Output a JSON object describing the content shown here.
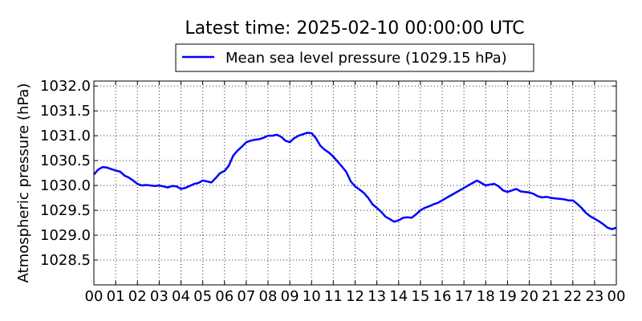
{
  "chart_data": {
    "type": "line",
    "title": "Latest time: 2025-02-10 00:00:00 UTC",
    "xlabel": "",
    "ylabel": "Atmospheric pressure (hPa)",
    "xlim": [
      0,
      24
    ],
    "ylim": [
      1028.0,
      1032.1
    ],
    "grid": true,
    "legend_position": "top-center",
    "x_tick_labels": [
      "00",
      "01",
      "02",
      "03",
      "04",
      "05",
      "06",
      "07",
      "08",
      "09",
      "10",
      "11",
      "12",
      "13",
      "14",
      "15",
      "16",
      "17",
      "18",
      "19",
      "20",
      "21",
      "22",
      "23",
      "00"
    ],
    "y_ticks": [
      1028.5,
      1029.0,
      1029.5,
      1030.0,
      1030.5,
      1031.0,
      1031.5,
      1032.0
    ],
    "y_tick_labels": [
      "1028.5",
      "1029.0",
      "1029.5",
      "1030.0",
      "1030.5",
      "1031.0",
      "1031.5",
      "1032.0"
    ],
    "series": [
      {
        "name": "Mean sea level pressure (1029.15 hPa)",
        "color": "#0000ff",
        "x": [
          0.0,
          0.2,
          0.4,
          0.6,
          0.8,
          1.0,
          1.2,
          1.4,
          1.6,
          1.8,
          2.0,
          2.2,
          2.4,
          2.6,
          2.8,
          3.0,
          3.2,
          3.4,
          3.6,
          3.8,
          4.0,
          4.2,
          4.4,
          4.6,
          4.8,
          5.0,
          5.2,
          5.4,
          5.6,
          5.8,
          6.0,
          6.2,
          6.4,
          6.6,
          6.8,
          7.0,
          7.2,
          7.4,
          7.6,
          7.8,
          8.0,
          8.2,
          8.4,
          8.6,
          8.8,
          9.0,
          9.2,
          9.4,
          9.6,
          9.8,
          10.0,
          10.2,
          10.4,
          10.6,
          10.8,
          11.0,
          11.2,
          11.4,
          11.6,
          11.8,
          12.0,
          12.2,
          12.4,
          12.6,
          12.8,
          13.0,
          13.2,
          13.4,
          13.6,
          13.8,
          14.0,
          14.2,
          14.4,
          14.6,
          14.8,
          15.0,
          15.2,
          15.4,
          15.6,
          15.8,
          16.0,
          16.2,
          16.4,
          16.6,
          16.8,
          17.0,
          17.2,
          17.4,
          17.6,
          17.8,
          18.0,
          18.2,
          18.4,
          18.6,
          18.8,
          19.0,
          19.2,
          19.4,
          19.6,
          19.8,
          20.0,
          20.2,
          20.4,
          20.6,
          20.8,
          21.0,
          21.2,
          21.4,
          21.6,
          21.8,
          22.0,
          22.2,
          22.4,
          22.6,
          22.8,
          23.0,
          23.2,
          23.4,
          23.6,
          23.8,
          24.0
        ],
        "y": [
          1030.22,
          1030.32,
          1030.37,
          1030.36,
          1030.33,
          1030.3,
          1030.28,
          1030.2,
          1030.16,
          1030.1,
          1030.03,
          1030.0,
          1030.01,
          1030.0,
          1029.99,
          1030.0,
          1029.98,
          1029.96,
          1029.99,
          1029.98,
          1029.93,
          1029.95,
          1029.99,
          1030.03,
          1030.05,
          1030.1,
          1030.08,
          1030.06,
          1030.15,
          1030.25,
          1030.29,
          1030.4,
          1030.6,
          1030.7,
          1030.78,
          1030.87,
          1030.9,
          1030.92,
          1030.93,
          1030.96,
          1031.0,
          1031.0,
          1031.02,
          1030.98,
          1030.9,
          1030.87,
          1030.95,
          1031.0,
          1031.03,
          1031.06,
          1031.05,
          1030.95,
          1030.8,
          1030.72,
          1030.66,
          1030.58,
          1030.48,
          1030.38,
          1030.27,
          1030.08,
          1029.98,
          1029.92,
          1029.85,
          1029.75,
          1029.62,
          1029.55,
          1029.47,
          1029.37,
          1029.32,
          1029.27,
          1029.3,
          1029.35,
          1029.36,
          1029.35,
          1029.42,
          1029.5,
          1029.55,
          1029.58,
          1029.62,
          1029.65,
          1029.7,
          1029.75,
          1029.8,
          1029.85,
          1029.9,
          1029.95,
          1030.0,
          1030.05,
          1030.1,
          1030.05,
          1030.0,
          1030.02,
          1030.03,
          1029.98,
          1029.9,
          1029.87,
          1029.9,
          1029.93,
          1029.88,
          1029.87,
          1029.86,
          1029.83,
          1029.78,
          1029.76,
          1029.77,
          1029.75,
          1029.74,
          1029.73,
          1029.72,
          1029.7,
          1029.7,
          1029.63,
          1029.55,
          1029.45,
          1029.38,
          1029.33,
          1029.28,
          1029.22,
          1029.15,
          1029.12,
          1029.15
        ]
      }
    ]
  }
}
